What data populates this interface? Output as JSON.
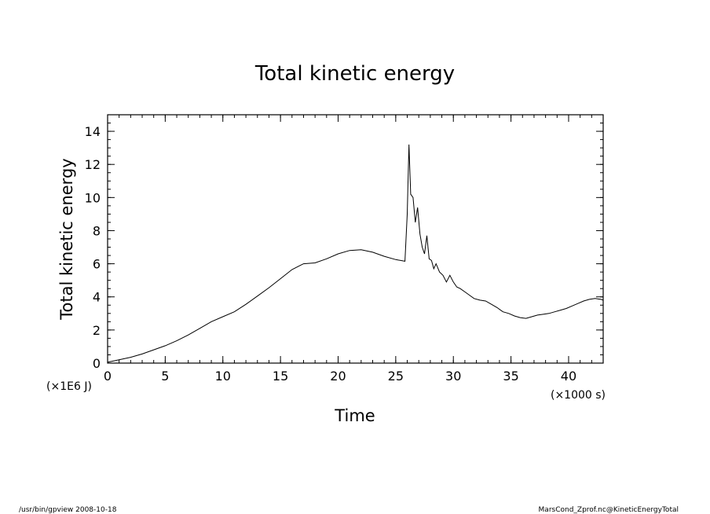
{
  "chart_data": {
    "type": "line",
    "title": "Total kinetic energy",
    "xlabel": "Time",
    "ylabel": "Total kinetic energy",
    "x_unit_label": "(×1000 s)",
    "y_unit_label": "(×1E6 J)",
    "xlim": [
      0,
      43
    ],
    "ylim": [
      0,
      15
    ],
    "x_ticks": [
      0,
      5,
      10,
      15,
      20,
      25,
      30,
      35,
      40
    ],
    "y_ticks": [
      0,
      2,
      4,
      6,
      8,
      10,
      12,
      14
    ],
    "x_minor_step": 1,
    "y_minor_step": 0.5,
    "grid": false,
    "series": [
      {
        "x": [
          0,
          1,
          2,
          3,
          4,
          5,
          6,
          7,
          8,
          9,
          10,
          11,
          12,
          13,
          14,
          15,
          16,
          17,
          18,
          19,
          20,
          21,
          22,
          23,
          24,
          25,
          25.8,
          26.0,
          26.15,
          26.3,
          26.5,
          26.7,
          26.9,
          27.1,
          27.3,
          27.5,
          27.7,
          27.9,
          28.1,
          28.3,
          28.5,
          28.8,
          29.1,
          29.4,
          29.7,
          30.0,
          30.3,
          30.6,
          31.0,
          31.4,
          31.8,
          32.3,
          32.8,
          33.3,
          33.8,
          34.3,
          34.8,
          35.3,
          35.8,
          36.3,
          36.8,
          37.3,
          37.8,
          38.3,
          38.8,
          39.3,
          39.8,
          40.3,
          40.8,
          41.3,
          41.8,
          42.3,
          42.8,
          43.0
        ],
        "values": [
          0.05,
          0.2,
          0.35,
          0.55,
          0.8,
          1.05,
          1.35,
          1.7,
          2.1,
          2.5,
          2.8,
          3.1,
          3.55,
          4.05,
          4.55,
          5.1,
          5.65,
          6.0,
          6.05,
          6.3,
          6.6,
          6.8,
          6.85,
          6.7,
          6.45,
          6.25,
          6.15,
          9.0,
          13.2,
          10.2,
          10.0,
          8.5,
          9.4,
          7.8,
          7.0,
          6.6,
          7.7,
          6.3,
          6.2,
          5.7,
          6.0,
          5.5,
          5.3,
          4.9,
          5.3,
          4.9,
          4.6,
          4.5,
          4.3,
          4.1,
          3.9,
          3.8,
          3.75,
          3.55,
          3.35,
          3.1,
          3.0,
          2.85,
          2.75,
          2.7,
          2.8,
          2.9,
          2.95,
          3.0,
          3.1,
          3.2,
          3.3,
          3.45,
          3.6,
          3.75,
          3.85,
          3.9,
          3.85,
          3.8
        ]
      }
    ]
  },
  "footer": {
    "left": "/usr/bin/gpview   2008-10-18",
    "right": "MarsCond_Zprof.nc@KineticEnergyTotal"
  }
}
